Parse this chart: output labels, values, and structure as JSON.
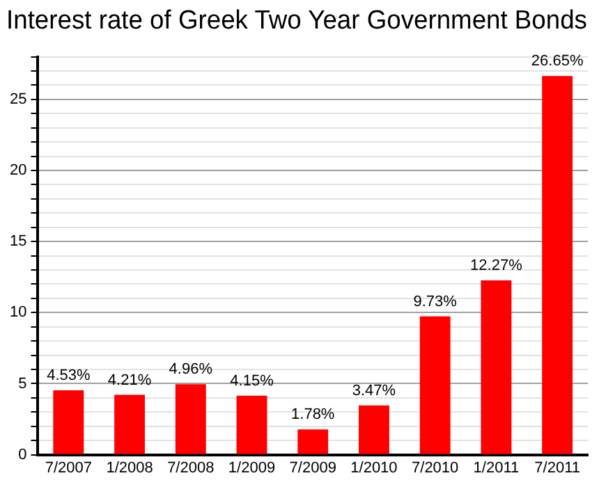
{
  "chart_data": {
    "type": "bar",
    "title": "Interest rate of Greek Two Year Government Bonds",
    "categories": [
      "7/2007",
      "1/2008",
      "7/2008",
      "1/2009",
      "7/2009",
      "1/2010",
      "7/2010",
      "1/2011",
      "7/2011"
    ],
    "values": [
      4.53,
      4.21,
      4.96,
      4.15,
      1.78,
      3.47,
      9.73,
      12.27,
      26.65
    ],
    "value_labels": [
      "4.53%",
      "4.21%",
      "4.96%",
      "4.15%",
      "1.78%",
      "3.47%",
      "9.73%",
      "12.27%",
      "26.65%"
    ],
    "color": "#ff0000",
    "ylim": [
      0,
      28
    ],
    "yticks": [
      0,
      {
        "value": 1,
        "label": null
      },
      {
        "value": 2,
        "label": null
      },
      {
        "value": 3,
        "label": null
      },
      {
        "value": 4,
        "label": null
      },
      5,
      {
        "value": 6,
        "label": null
      },
      {
        "value": 7,
        "label": null
      },
      {
        "value": 8,
        "label": null
      },
      {
        "value": 9,
        "label": null
      },
      10,
      {
        "value": 11,
        "label": null
      },
      {
        "value": 12,
        "label": null
      },
      {
        "value": 13,
        "label": null
      },
      {
        "value": 14,
        "label": null
      },
      15,
      {
        "value": 16,
        "label": null
      },
      {
        "value": 17,
        "label": null
      },
      {
        "value": 18,
        "label": null
      },
      {
        "value": 19,
        "label": null
      },
      20,
      {
        "value": 21,
        "label": null
      },
      {
        "value": 22,
        "label": null
      },
      {
        "value": 23,
        "label": null
      },
      {
        "value": 24,
        "label": null
      },
      25,
      {
        "value": 26,
        "label": null
      },
      {
        "value": 27,
        "label": null
      },
      {
        "value": 28,
        "label": null
      }
    ],
    "grid": "y"
  }
}
